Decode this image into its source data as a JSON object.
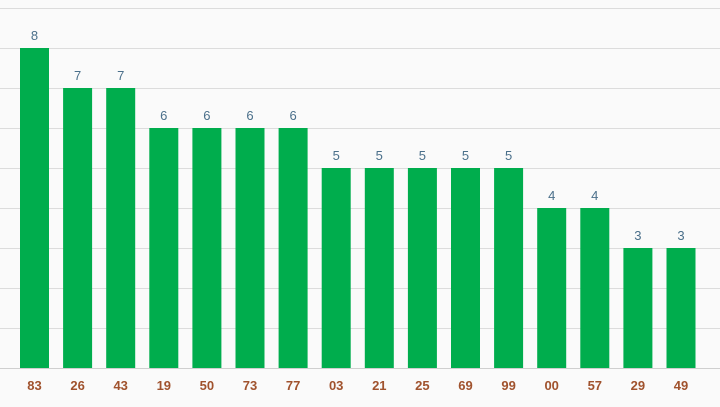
{
  "chart_data": {
    "type": "bar",
    "categories": [
      "83",
      "26",
      "43",
      "19",
      "50",
      "73",
      "77",
      "03",
      "21",
      "25",
      "69",
      "99",
      "00",
      "57",
      "29",
      "49"
    ],
    "values": [
      8,
      7,
      7,
      6,
      6,
      6,
      6,
      5,
      5,
      5,
      5,
      5,
      4,
      4,
      3,
      3
    ],
    "title": "",
    "xlabel": "",
    "ylabel": "",
    "ylim": [
      0,
      9
    ],
    "grid": true,
    "data_labels": true,
    "colors": {
      "bar": "#00ad4d",
      "value_label": "#4a6f8a",
      "tick_label": "#a0522d",
      "grid": "#dcdcdc",
      "background": "#fafafa"
    }
  }
}
